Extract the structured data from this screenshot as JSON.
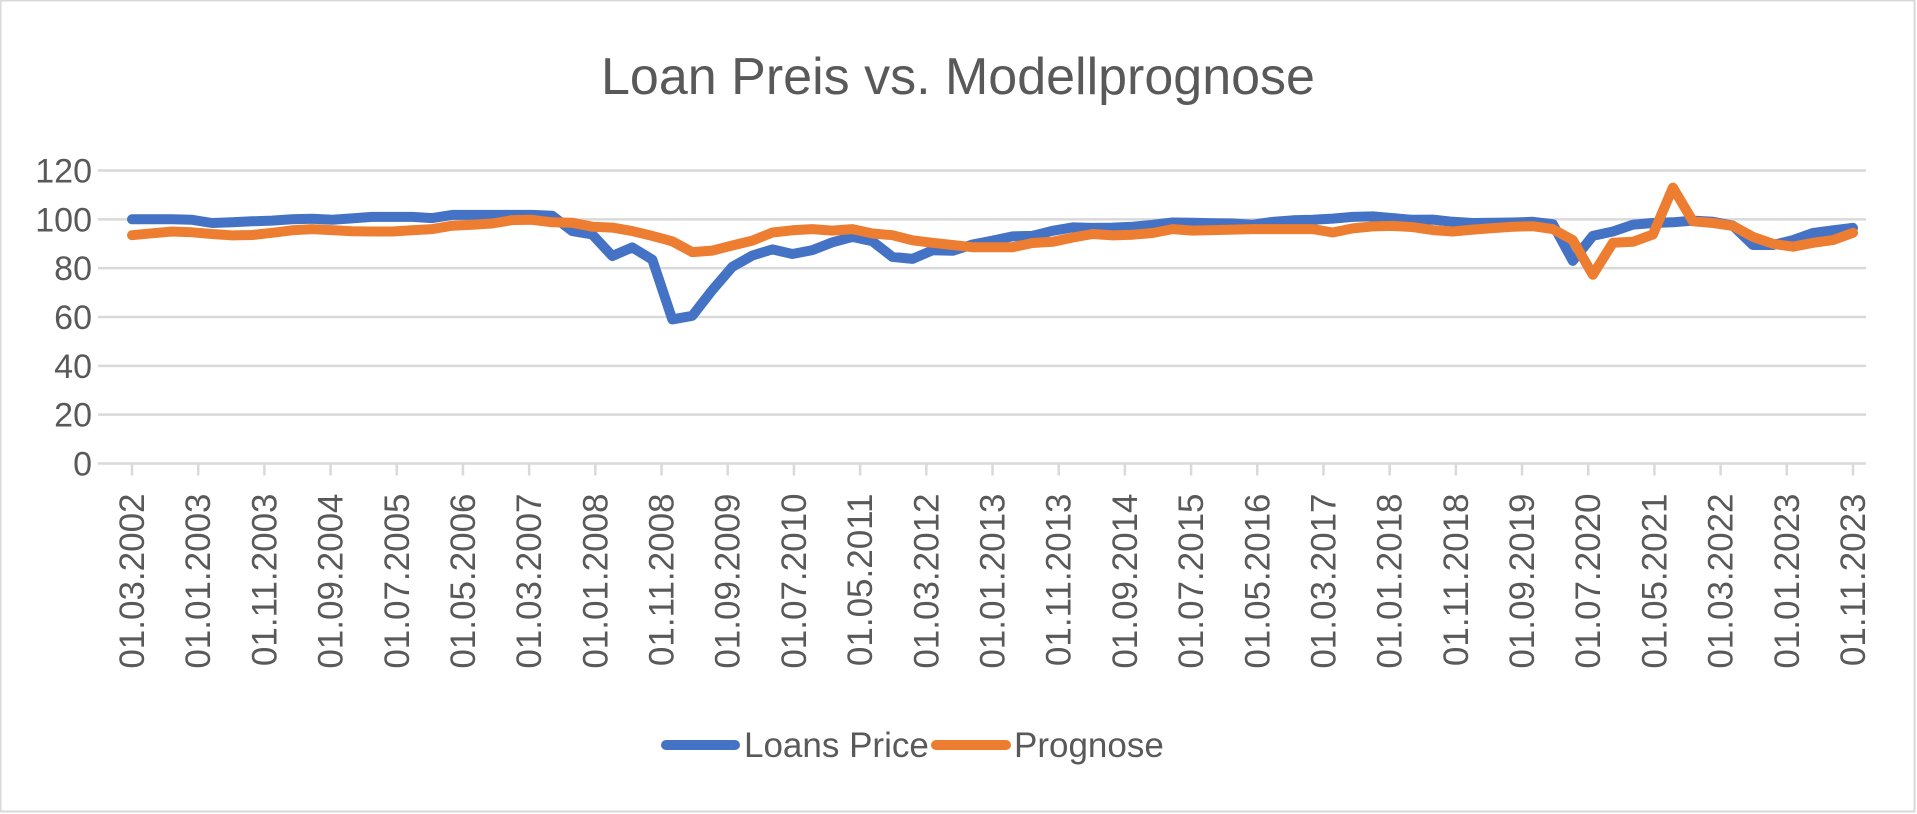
{
  "chart_data": {
    "type": "line",
    "title": "Loan Preis  vs. Modellprognose",
    "xlabel": "",
    "ylabel": "",
    "ylim": [
      0,
      120
    ],
    "yticks": [
      "0",
      "20",
      "40",
      "60",
      "80",
      "100",
      "120"
    ],
    "grid": true,
    "legend_position": "bottom",
    "x_tick_labels": [
      "01.03.2002",
      "01.01.2003",
      "01.11.2003",
      "01.09.2004",
      "01.07.2005",
      "01.05.2006",
      "01.03.2007",
      "01.01.2008",
      "01.11.2008",
      "01.09.2009",
      "01.07.2010",
      "01.05.2011",
      "01.03.2012",
      "01.01.2013",
      "01.11.2013",
      "01.09.2014",
      "01.07.2015",
      "01.05.2016",
      "01.03.2017",
      "01.01.2018",
      "01.11.2018",
      "01.09.2019",
      "01.07.2020",
      "01.05.2021",
      "01.03.2022",
      "01.01.2023",
      "01.11.2023"
    ],
    "series": [
      {
        "name": "Loans Price",
        "color": "#4472C4",
        "values": [
          100,
          100,
          100,
          99.8,
          98.5,
          98.8,
          99.2,
          99.5,
          100,
          100.2,
          99.8,
          100.4,
          101,
          101,
          101,
          100.5,
          101.8,
          101.8,
          101.8,
          101.8,
          101.8,
          101.5,
          95.2,
          93.8,
          85,
          88.5,
          83.5,
          59,
          60.5,
          71,
          80.5,
          85.2,
          87.7,
          85.8,
          87.4,
          90.6,
          92.8,
          91,
          84.6,
          83.8,
          87.3,
          87.1,
          89.7,
          91.3,
          93,
          93.2,
          95.3,
          96.7,
          96.5,
          96.6,
          97,
          97.7,
          98.7,
          98.6,
          98.4,
          98.3,
          97.8,
          99,
          99.6,
          99.8,
          100.3,
          101,
          101.2,
          100.5,
          99.8,
          99.9,
          99,
          98.5,
          98.6,
          98.7,
          99,
          98,
          83,
          93.2,
          95,
          97.8,
          98.5,
          98.8,
          99.5,
          99,
          97.4,
          89.5,
          89.5,
          91.5,
          94.4,
          95.5,
          96.5
        ]
      },
      {
        "name": "Prognose",
        "color": "#ED7D31",
        "values": [
          93.5,
          94.3,
          95,
          94.7,
          94,
          93.4,
          93.6,
          94.5,
          95.5,
          96,
          95.6,
          95.1,
          95,
          95,
          95.5,
          96,
          97.4,
          97.8,
          98.3,
          99.7,
          99.8,
          98.8,
          98.6,
          97,
          96.6,
          95.2,
          93.2,
          91,
          86.6,
          87.2,
          89.3,
          91.3,
          94.6,
          95.5,
          96,
          95.4,
          96,
          94.2,
          93.5,
          91.4,
          90.4,
          89.5,
          88.6,
          88.6,
          88.6,
          90.3,
          90.8,
          92.5,
          94,
          93.4,
          93.7,
          94.4,
          96,
          95.4,
          95.6,
          95.8,
          96,
          96,
          96,
          96,
          94.6,
          96.3,
          97.1,
          97.3,
          96.8,
          95.6,
          95,
          95.8,
          96.4,
          97,
          97.2,
          96,
          91.5,
          77.3,
          90.4,
          90.8,
          93.8,
          113,
          99.2,
          98.5,
          97.3,
          92.8,
          90,
          88.8,
          90.4,
          91.5,
          94.5
        ]
      }
    ]
  }
}
